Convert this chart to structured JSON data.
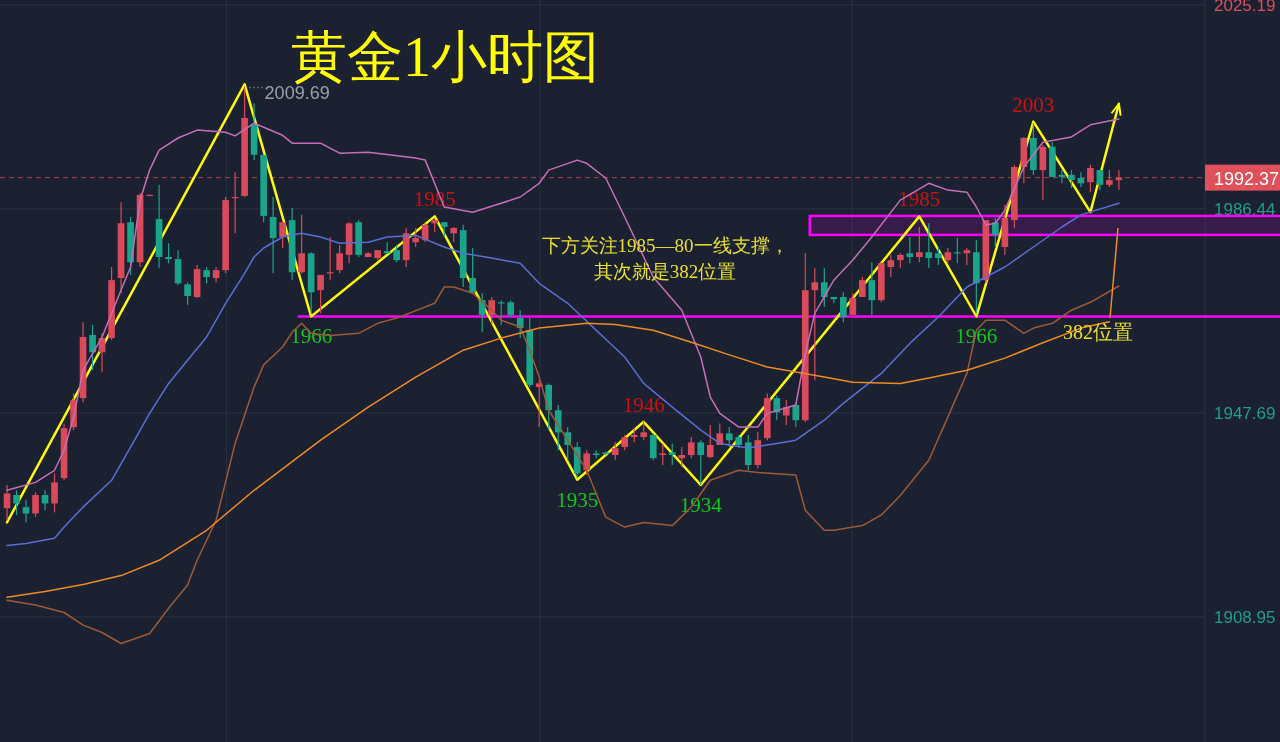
{
  "chart_data": {
    "type": "candlestick",
    "title": "黄金1小时图",
    "categories": [
      null,
      null,
      null,
      null,
      null,
      null,
      null,
      null,
      null,
      null,
      null,
      null,
      null,
      null,
      null,
      null,
      null,
      null,
      null,
      null,
      null,
      null,
      null,
      null,
      null,
      null,
      null,
      null,
      null,
      null,
      null,
      null,
      null,
      null,
      null,
      null,
      null,
      null,
      null,
      null,
      null,
      null,
      null,
      null,
      null,
      null,
      null,
      null,
      null,
      null,
      null,
      null,
      null,
      null,
      null,
      null,
      null,
      null,
      null,
      null,
      null,
      null,
      null,
      null,
      null,
      null,
      null,
      null,
      null,
      null,
      null,
      null,
      null,
      null,
      null,
      null,
      null,
      null,
      null,
      null,
      null,
      null,
      null,
      null,
      null,
      null,
      null,
      null,
      null,
      null,
      null,
      null,
      null,
      null,
      null,
      null,
      null,
      null,
      null,
      null,
      null,
      null,
      null,
      null,
      null,
      null,
      null,
      null,
      null,
      null,
      null,
      null,
      null,
      null,
      null,
      null,
      null,
      null
    ],
    "ohlc": [
      [
        1929.6,
        1934.0,
        1927.3,
        1932.4
      ],
      [
        1932.1,
        1933.0,
        1928.3,
        1930.5
      ],
      [
        1929.8,
        1931.1,
        1926.9,
        1928.6
      ],
      [
        1928.6,
        1932.6,
        1927.9,
        1932.1
      ],
      [
        1932.1,
        1933.0,
        1929.2,
        1930.5
      ],
      [
        1930.5,
        1936.2,
        1928.8,
        1934.5
      ],
      [
        1935.3,
        1945.7,
        1934.9,
        1944.8
      ],
      [
        1945.0,
        1951.4,
        1944.4,
        1950.1
      ],
      [
        1950.5,
        1964.9,
        1949.7,
        1962.1
      ],
      [
        1962.5,
        1964.4,
        1955.8,
        1959.2
      ],
      [
        1959.2,
        1962.8,
        1955.4,
        1961.9
      ],
      [
        1961.9,
        1975.4,
        1961.5,
        1972.9
      ],
      [
        1973.3,
        1987.7,
        1970.4,
        1983.7
      ],
      [
        1983.9,
        1984.9,
        1973.9,
        1976.3
      ],
      [
        1976.3,
        1989.4,
        1975.4,
        1989.1
      ],
      [
        1988.9,
        1989.1,
        1988.9,
        1989.1
      ],
      [
        1984.5,
        1991.0,
        1975.2,
        1977.3
      ],
      [
        1977.3,
        1979.9,
        1976.1,
        1976.9
      ],
      [
        1976.9,
        1978.6,
        1972.0,
        1972.3
      ],
      [
        1972.1,
        1972.5,
        1968.2,
        1969.9
      ],
      [
        1969.7,
        1975.8,
        1969.5,
        1975.0
      ],
      [
        1974.8,
        1975.4,
        1972.3,
        1973.5
      ],
      [
        1973.3,
        1975.4,
        1972.5,
        1974.8
      ],
      [
        1974.8,
        1988.7,
        1974.2,
        1988.1
      ],
      [
        1988.5,
        1993.4,
        1981.8,
        1988.7
      ],
      [
        1988.9,
        2009.69,
        1988.7,
        2003.7
      ],
      [
        2002.4,
        2006.5,
        1995.7,
        1996.7
      ],
      [
        1996.7,
        1996.7,
        1983.9,
        1985.1
      ],
      [
        1984.9,
        1988.7,
        1974.2,
        1980.9
      ],
      [
        1981.1,
        1983.9,
        1979.0,
        1983.9
      ],
      [
        1984.3,
        1986.6,
        1972.9,
        1974.4
      ],
      [
        1974.4,
        1985.3,
        1974.2,
        1978.0
      ],
      [
        1978.0,
        1978.2,
        1966.6,
        1970.6
      ],
      [
        1971.0,
        1973.9,
        1966.6,
        1973.9
      ],
      [
        1974.2,
        1981.1,
        1972.9,
        1974.4
      ],
      [
        1974.8,
        1979.6,
        1974.2,
        1978.0
      ],
      [
        1977.7,
        1983.9,
        1976.1,
        1983.7
      ],
      [
        1983.9,
        1984.3,
        1977.3,
        1977.7
      ],
      [
        1977.3,
        1978.2,
        1977.3,
        1978.0
      ],
      [
        1977.1,
        1978.6,
        1976.7,
        1978.6
      ],
      [
        1978.4,
        1980.1,
        1978.0,
        1978.0
      ],
      [
        1978.6,
        1979.6,
        1976.3,
        1976.7
      ],
      [
        1976.7,
        1982.8,
        1975.4,
        1981.8
      ],
      [
        1980.1,
        1982.8,
        1979.2,
        1980.9
      ],
      [
        1980.5,
        1983.7,
        1980.1,
        1983.4
      ],
      [
        1983.7,
        1984.7,
        1982.0,
        1984.3
      ],
      [
        1983.9,
        1983.9,
        1981.1,
        1983.0
      ],
      [
        1981.8,
        1983.0,
        1980.1,
        1982.8
      ],
      [
        1982.4,
        1983.4,
        1971.6,
        1973.3
      ],
      [
        1973.3,
        1979.0,
        1970.4,
        1970.6
      ],
      [
        1969.1,
        1970.4,
        1963.0,
        1966.3
      ],
      [
        1966.3,
        1969.7,
        1964.4,
        1969.1
      ],
      [
        1968.7,
        1969.1,
        1964.4,
        1968.5
      ],
      [
        1968.7,
        1969.1,
        1965.9,
        1966.3
      ],
      [
        1965.7,
        1967.2,
        1961.9,
        1963.8
      ],
      [
        1963.4,
        1965.7,
        1952.6,
        1953.0
      ],
      [
        1952.6,
        1953.9,
        1945.0,
        1953.3
      ],
      [
        1953.0,
        1953.3,
        1944.4,
        1948.2
      ],
      [
        1948.2,
        1949.2,
        1940.6,
        1944.0
      ],
      [
        1944.0,
        1945.0,
        1938.7,
        1941.6
      ],
      [
        1941.2,
        1942.1,
        1935.3,
        1936.2
      ],
      [
        1936.8,
        1940.6,
        1935.9,
        1940.0
      ],
      [
        1940.0,
        1940.6,
        1939.1,
        1939.7
      ],
      [
        1940.2,
        1940.2,
        1939.7,
        1939.9
      ],
      [
        1939.7,
        1942.1,
        1938.7,
        1941.0
      ],
      [
        1941.2,
        1943.5,
        1940.6,
        1943.1
      ],
      [
        1943.1,
        1944.8,
        1942.1,
        1943.5
      ],
      [
        1943.1,
        1946.3,
        1942.5,
        1944.0
      ],
      [
        1943.5,
        1943.8,
        1938.7,
        1939.1
      ],
      [
        1939.7,
        1941.9,
        1937.8,
        1940.0
      ],
      [
        1940.2,
        1941.9,
        1937.8,
        1939.7
      ],
      [
        1939.1,
        1941.2,
        1937.4,
        1939.7
      ],
      [
        1939.7,
        1943.1,
        1939.1,
        1942.1
      ],
      [
        1942.1,
        1942.5,
        1934.0,
        1939.7
      ],
      [
        1939.3,
        1945.4,
        1939.1,
        1941.6
      ],
      [
        1941.6,
        1945.7,
        1941.6,
        1943.8
      ],
      [
        1943.8,
        1945.0,
        1941.2,
        1942.5
      ],
      [
        1943.1,
        1943.5,
        1941.0,
        1941.6
      ],
      [
        1942.1,
        1943.5,
        1936.8,
        1937.8
      ],
      [
        1937.8,
        1944.0,
        1937.2,
        1942.5
      ],
      [
        1942.9,
        1951.4,
        1942.5,
        1950.5
      ],
      [
        1950.5,
        1951.0,
        1946.3,
        1947.8
      ],
      [
        1947.2,
        1950.1,
        1945.4,
        1948.8
      ],
      [
        1949.2,
        1949.5,
        1945.0,
        1946.3
      ],
      [
        1946.3,
        1978.0,
        1945.9,
        1971.0
      ],
      [
        1971.0,
        1975.2,
        1953.9,
        1972.5
      ],
      [
        1972.5,
        1975.2,
        1967.8,
        1969.7
      ],
      [
        1969.7,
        1969.7,
        1968.5,
        1969.3
      ],
      [
        1969.7,
        1970.6,
        1964.9,
        1965.9
      ],
      [
        1966.3,
        1970.4,
        1966.3,
        1969.5
      ],
      [
        1969.7,
        1973.5,
        1969.7,
        1972.9
      ],
      [
        1972.9,
        1976.3,
        1966.3,
        1969.1
      ],
      [
        1969.1,
        1976.3,
        1968.7,
        1976.1
      ],
      [
        1975.4,
        1977.7,
        1973.5,
        1976.7
      ],
      [
        1976.7,
        1978.0,
        1975.2,
        1977.7
      ],
      [
        1978.0,
        1981.1,
        1976.1,
        1977.3
      ],
      [
        1977.3,
        1983.0,
        1976.3,
        1978.2
      ],
      [
        1978.2,
        1983.7,
        1975.2,
        1977.1
      ],
      [
        1978.0,
        1979.2,
        1975.8,
        1977.1
      ],
      [
        1976.7,
        1979.0,
        1976.1,
        1978.2
      ],
      [
        1978.2,
        1980.9,
        1976.1,
        1978.0
      ],
      [
        1978.0,
        1979.0,
        1975.8,
        1978.6
      ],
      [
        1978.2,
        1980.5,
        1966.6,
        1972.3
      ],
      [
        1972.9,
        1984.3,
        1972.3,
        1984.3
      ],
      [
        1983.9,
        1984.7,
        1979.0,
        1981.5
      ],
      [
        1979.2,
        1987.2,
        1977.7,
        1984.7
      ],
      [
        1984.3,
        1994.8,
        1982.8,
        1994.4
      ],
      [
        1994.4,
        2000.1,
        1991.3,
        1999.9
      ],
      [
        1999.9,
        2002.7,
        1992.9,
        1993.8
      ],
      [
        1993.8,
        1998.6,
        1988.1,
        1998.2
      ],
      [
        1998.2,
        1999.1,
        1992.5,
        1992.5
      ],
      [
        1992.9,
        1993.8,
        1991.3,
        1992.5
      ],
      [
        1992.9,
        1993.8,
        1990.4,
        1991.9
      ],
      [
        1992.3,
        1993.4,
        1990.6,
        1991.3
      ],
      [
        1991.5,
        1994.8,
        1989.6,
        1994.2
      ],
      [
        1993.8,
        1993.8,
        1990.0,
        1991.0
      ],
      [
        1991.0,
        1993.8,
        1990.6,
        1991.9
      ],
      [
        1991.9,
        1993.8,
        1990.0,
        1992.37
      ]
    ],
    "series": [
      {
        "type": "line",
        "color": "#c56fb8",
        "values": [
          1933.0,
          null,
          null,
          1934.5,
          null,
          1936.8,
          1940.6,
          1946.9,
          1955.8,
          null,
          1962.1,
          1966.6,
          null,
          1975.4,
          1988.1,
          1993.8,
          1997.6,
          null,
          1999.9,
          null,
          2001.4,
          null,
          null,
          2001.0,
          2000.3,
          null,
          2002.7,
          null,
          null,
          2000.4,
          1998.9,
          null,
          null,
          1998.9,
          null,
          1997.0,
          null,
          null,
          1997.2,
          null,
          null,
          null,
          null,
          1996.1,
          1995.7,
          null,
          1986.8,
          null,
          null,
          1985.8,
          null,
          null,
          1987.5,
          null,
          1988.7,
          null,
          1991.3,
          1993.8,
          null,
          null,
          1995.7,
          1995.1,
          null,
          1992.3,
          null,
          1984.9,
          null,
          null,
          1973.5,
          null,
          null,
          1967.2,
          null,
          1958.3,
          1950.7,
          1947.6,
          null,
          1945.0,
          null,
          1945.0,
          1947.6,
          null,
          null,
          1949.2,
          1959.0,
          1966.6,
          null,
          1972.9,
          null,
          1976.7,
          null,
          1981.1,
          null,
          null,
          1988.1,
          null,
          null,
          1991.3,
          null,
          1990.0,
          null,
          1989.6,
          1986.8,
          1983.4,
          1983.7,
          1986.2,
          null,
          1994.4,
          null,
          1999.1,
          null,
          null,
          2000.1,
          null,
          2002.4,
          null,
          null,
          2003.5
        ]
      },
      {
        "type": "line",
        "color": "#5a6ed6",
        "values": [
          1922.5,
          null,
          1922.9,
          null,
          null,
          1923.9,
          1926.0,
          null,
          1929.8,
          null,
          null,
          1934.9,
          null,
          1941.2,
          null,
          1947.6,
          null,
          1953.3,
          null,
          1957.7,
          null,
          1962.1,
          null,
          1968.5,
          null,
          1974.2,
          1977.3,
          1979.0,
          null,
          1981.1,
          null,
          1981.8,
          null,
          1981.1,
          null,
          1979.9,
          null,
          null,
          1980.1,
          null,
          1981.1,
          null,
          null,
          1981.4,
          null,
          null,
          1979.2,
          null,
          1978.0,
          null,
          null,
          1977.1,
          null,
          null,
          1976.1,
          null,
          1972.3,
          null,
          null,
          1968.5,
          null,
          null,
          1963.4,
          null,
          null,
          1958.3,
          null,
          1953.3,
          null,
          null,
          1948.8,
          null,
          null,
          1944.4,
          null,
          1941.9,
          null,
          null,
          1941.0,
          null,
          null,
          1941.9,
          null,
          1942.5,
          null,
          null,
          1946.3,
          null,
          1949.5,
          null,
          null,
          null,
          1955.2,
          null,
          null,
          1960.9,
          null,
          null,
          1965.9,
          null,
          null,
          1971.6,
          null,
          null,
          null,
          1975.4,
          null,
          null,
          1979.2,
          null,
          null,
          1983.0,
          null,
          1985.3,
          null,
          null,
          null,
          1987.5
        ]
      },
      {
        "type": "line",
        "color": "#9c5a38",
        "values": [
          1912.1,
          null,
          null,
          1911.2,
          null,
          null,
          1909.8,
          null,
          1907.4,
          null,
          1906.0,
          null,
          1903.9,
          null,
          null,
          1905.8,
          null,
          1910.6,
          null,
          1915.0,
          1919.7,
          null,
          1927.3,
          null,
          1941.9,
          null,
          1952.6,
          1956.8,
          null,
          1960.2,
          1963.0,
          1964.7,
          1962.8,
          null,
          1962.4,
          null,
          null,
          1962.8,
          null,
          1964.7,
          null,
          1965.7,
          null,
          null,
          null,
          1968.5,
          1971.6,
          1971.6,
          null,
          1970.4,
          null,
          1967.2,
          1965.3,
          null,
          1964.0,
          1959.6,
          1954.5,
          1948.2,
          null,
          1942.5,
          null,
          1936.8,
          null,
          1927.9,
          null,
          1926.0,
          null,
          1926.9,
          null,
          null,
          1926.3,
          null,
          1929.8,
          null,
          1934.9,
          null,
          null,
          1936.8,
          null,
          1936.4,
          null,
          null,
          null,
          1935.9,
          1929.2,
          null,
          1925.4,
          1925.4,
          null,
          null,
          1926.3,
          null,
          1928.3,
          null,
          1932.0,
          null,
          null,
          1938.7,
          null,
          1946.9,
          null,
          1955.2,
          1963.4,
          1965.3,
          null,
          1965.3,
          null,
          1962.8,
          1963.8,
          null,
          1964.7,
          null,
          1967.2,
          null,
          1968.7,
          null,
          null,
          1971.8
        ]
      },
      {
        "type": "line",
        "color": "#f08a24",
        "values": [
          1912.7,
          null,
          null,
          null,
          1913.8,
          null,
          null,
          null,
          1915.1,
          null,
          null,
          null,
          1916.8,
          null,
          null,
          null,
          1919.7,
          null,
          null,
          null,
          null,
          1925.4,
          null,
          null,
          null,
          null,
          1933.0,
          null,
          null,
          null,
          null,
          null,
          null,
          1942.5,
          null,
          null,
          null,
          null,
          1948.8,
          null,
          null,
          null,
          null,
          1954.5,
          null,
          null,
          null,
          null,
          1959.6,
          null,
          null,
          null,
          1961.9,
          null,
          null,
          null,
          1963.8,
          null,
          null,
          null,
          null,
          1964.7,
          null,
          null,
          1964.5,
          null,
          null,
          null,
          1963.4,
          null,
          null,
          null,
          1961.1,
          null,
          null,
          null,
          1958.7,
          null,
          null,
          null,
          1956.4,
          null,
          null,
          null,
          null,
          null,
          1954.5,
          null,
          null,
          1953.5,
          null,
          null,
          null,
          null,
          1953.3,
          null,
          null,
          1954.3,
          null,
          null,
          null,
          1955.8,
          null,
          null,
          null,
          1958.1,
          null,
          null,
          null,
          1961.0,
          null,
          null,
          null,
          1963.8,
          null,
          null,
          1965.0,
          null
        ]
      },
      {
        "type": "line",
        "color": "#ffff00",
        "values": [
          1926.9,
          null,
          null,
          null,
          null,
          null,
          null,
          null,
          null,
          null,
          null,
          null,
          null,
          null,
          null,
          null,
          null,
          null,
          null,
          null,
          null,
          null,
          null,
          null,
          null,
          2010.1,
          null,
          null,
          null,
          null,
          null,
          null,
          1966,
          null,
          null,
          null,
          null,
          null,
          null,
          null,
          null,
          null,
          null,
          null,
          null,
          1985,
          null,
          null,
          null,
          null,
          null,
          null,
          null,
          null,
          null,
          null,
          null,
          null,
          null,
          null,
          1935,
          null,
          null,
          null,
          null,
          null,
          null,
          1946,
          null,
          null,
          null,
          null,
          null,
          1934,
          null,
          null,
          null,
          null,
          null,
          null,
          null,
          null,
          null,
          null,
          null,
          null,
          null,
          null,
          null,
          null,
          null,
          null,
          null,
          null,
          null,
          null,
          1985,
          null,
          null,
          null,
          null,
          null,
          1966,
          null,
          null,
          null,
          null,
          null,
          2003,
          null,
          null,
          null,
          null,
          null,
          1985.8,
          null,
          null,
          2006.4
        ],
        "value_labels": [
          null,
          null,
          null,
          null,
          null,
          null,
          null,
          null,
          null,
          null,
          null,
          null,
          null,
          null,
          null,
          null,
          null,
          null,
          null,
          null,
          null,
          null,
          null,
          null,
          null,
          null,
          null,
          null,
          null,
          null,
          null,
          null,
          "1966",
          null,
          null,
          null,
          null,
          null,
          null,
          null,
          null,
          null,
          null,
          null,
          null,
          "1985",
          null,
          null,
          null,
          null,
          null,
          null,
          null,
          null,
          null,
          null,
          null,
          null,
          null,
          null,
          "1935",
          null,
          null,
          null,
          null,
          null,
          null,
          "1946",
          null,
          null,
          null,
          null,
          null,
          "1934",
          null,
          null,
          null,
          null,
          null,
          null,
          null,
          null,
          null,
          null,
          null,
          null,
          null,
          null,
          null,
          null,
          null,
          null,
          null,
          null,
          null,
          null,
          "1985",
          null,
          null,
          null,
          null,
          null,
          "1966",
          null,
          null,
          null,
          null,
          null,
          "2003",
          null,
          null,
          null,
          null,
          null,
          null,
          null,
          null,
          null
        ]
      }
    ],
    "ylim": [
      1885.2,
      2026.1
    ],
    "yticks": [
      1908.95,
      1947.69,
      1986.44,
      2025.19
    ],
    "tick_labels": "y",
    "grid": true,
    "ref_lines": [
      {
        "axis": "y",
        "value": 1992.37,
        "label": "1992.37",
        "color": "#e0505a",
        "line_style": "dashed"
      },
      {
        "axis": "y",
        "value": 1966,
        "color": "#ff00ff",
        "line_style": "solid"
      }
    ],
    "bands": [
      {
        "axis": "y",
        "from": 1981.5,
        "to": 1985.1,
        "color": "#ff00ff"
      }
    ],
    "annotations": [
      "2009.69",
      "下方关注1985—80一线支撑，其次就是382位置",
      "382位置"
    ]
  }
}
